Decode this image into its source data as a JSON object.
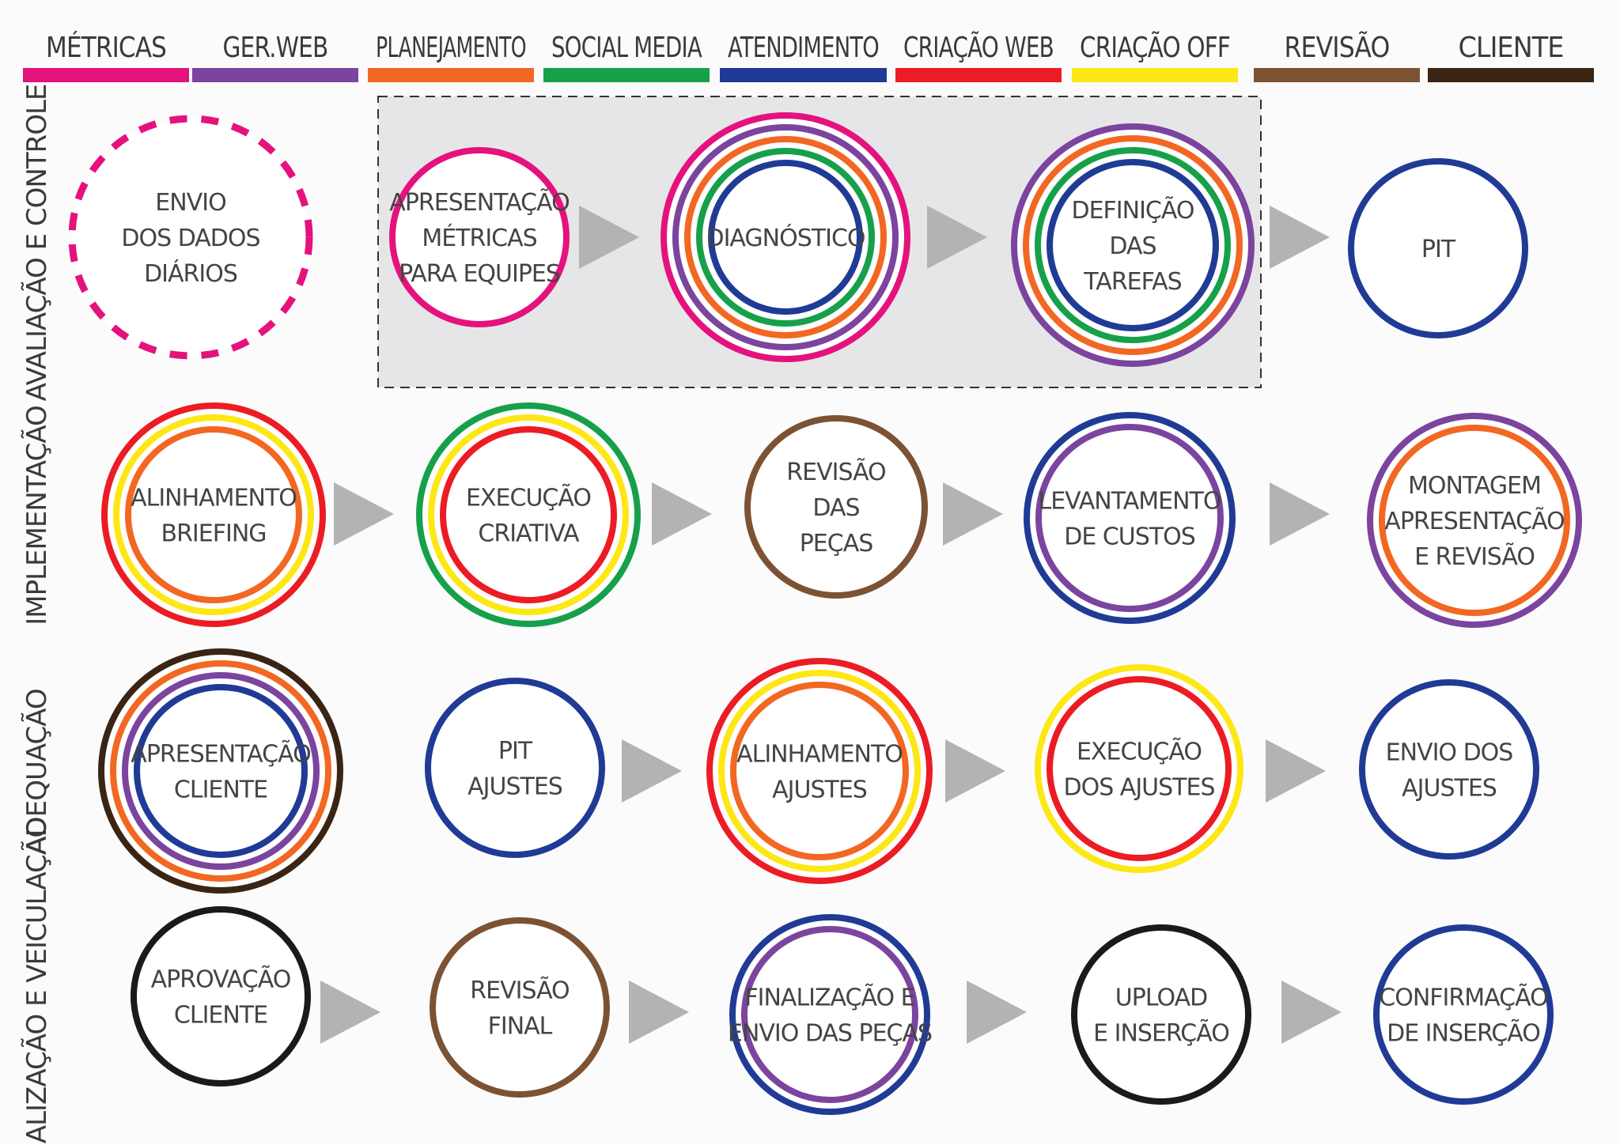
{
  "legend": [
    {
      "label": "MÉTRICAS",
      "color": "#e5127d"
    },
    {
      "label": "GER.WEB",
      "color": "#7b449e"
    },
    {
      "label": "PLANEJAMENTO",
      "color": "#f26722"
    },
    {
      "label": "SOCIAL MEDIA",
      "color": "#16a04a"
    },
    {
      "label": "ATENDIMENTO",
      "color": "#203b95"
    },
    {
      "label": "CRIAÇÃO WEB",
      "color": "#ec1c24"
    },
    {
      "label": "CRIAÇÃO OFF",
      "color": "#fde715"
    },
    {
      "label": "REVISÃO",
      "color": "#7d5233"
    },
    {
      "label": "CLIENTE",
      "color": "#3a2414"
    }
  ],
  "rows": [
    {
      "label": "AVALIAÇÃO E CONTROLE"
    },
    {
      "label": "IMPLEMENTAÇÃO"
    },
    {
      "label": "ADEQUAÇÃO"
    },
    {
      "label": "FINALIZAÇÃO E VEICULAÇÃO"
    }
  ],
  "nodes": [
    {
      "lines": [
        "ENVIO",
        "DOS DADOS",
        "DIÁRIOS"
      ],
      "rings": [
        "#e5127d"
      ],
      "dashed": true
    },
    {
      "lines": [
        "APRESENTAÇÃO",
        "MÉTRICAS",
        "PARA EQUIPES"
      ],
      "rings": [
        "#e5127d"
      ]
    },
    {
      "lines": [
        "DIAGNÓSTICO"
      ],
      "rings": [
        "#e5127d",
        "#7b449e",
        "#f26722",
        "#16a04a",
        "#203b95"
      ]
    },
    {
      "lines": [
        "DEFINIÇÃO",
        "DAS",
        "TAREFAS"
      ],
      "rings": [
        "#7b449e",
        "#f26722",
        "#16a04a",
        "#203b95"
      ]
    },
    {
      "lines": [
        "PIT"
      ],
      "rings": [
        "#203b95"
      ]
    },
    {
      "lines": [
        "ALINHAMENTO",
        "BRIEFING"
      ],
      "rings": [
        "#ec1c24",
        "#fde715",
        "#f26722"
      ]
    },
    {
      "lines": [
        "EXECUÇÃO",
        "CRIATIVA"
      ],
      "rings": [
        "#16a04a",
        "#fde715",
        "#ec1c24"
      ]
    },
    {
      "lines": [
        "REVISÃO",
        "DAS",
        "PEÇAS"
      ],
      "rings": [
        "#7d5233"
      ]
    },
    {
      "lines": [
        "LEVANTAMENTO",
        "DE CUSTOS"
      ],
      "rings": [
        "#203b95",
        "#7b449e"
      ]
    },
    {
      "lines": [
        "MONTAGEM",
        "APRESENTAÇÃO",
        "E REVISÃO"
      ],
      "rings": [
        "#7b449e",
        "#f26722"
      ]
    },
    {
      "lines": [
        "APRESENTAÇÃO",
        "CLIENTE"
      ],
      "rings": [
        "#3a2414",
        "#f26722",
        "#7b449e",
        "#203b95"
      ]
    },
    {
      "lines": [
        "PIT",
        "AJUSTES"
      ],
      "rings": [
        "#203b95"
      ]
    },
    {
      "lines": [
        "ALINHAMENTO",
        "AJUSTES"
      ],
      "rings": [
        "#ec1c24",
        "#fde715",
        "#f26722"
      ]
    },
    {
      "lines": [
        "EXECUÇÃO",
        "DOS AJUSTES"
      ],
      "rings": [
        "#fde715",
        "#ec1c24"
      ]
    },
    {
      "lines": [
        "ENVIO DOS",
        "AJUSTES"
      ],
      "rings": [
        "#203b95"
      ]
    },
    {
      "lines": [
        "APROVAÇÃO",
        "CLIENTE"
      ],
      "rings": [
        "#1a1a1a"
      ]
    },
    {
      "lines": [
        "REVISÃO",
        "FINAL"
      ],
      "rings": [
        "#7d5233"
      ]
    },
    {
      "lines": [
        "FINALIZAÇÃO E",
        "ENVIO DAS PEÇAS"
      ],
      "rings": [
        "#203b95",
        "#7b449e"
      ]
    },
    {
      "lines": [
        "UPLOAD",
        "E INSERÇÃO"
      ],
      "rings": [
        "#1a1a1a"
      ]
    },
    {
      "lines": [
        "CONFIRMAÇÃO",
        "DE INSERÇÃO"
      ],
      "rings": [
        "#203b95"
      ]
    }
  ]
}
